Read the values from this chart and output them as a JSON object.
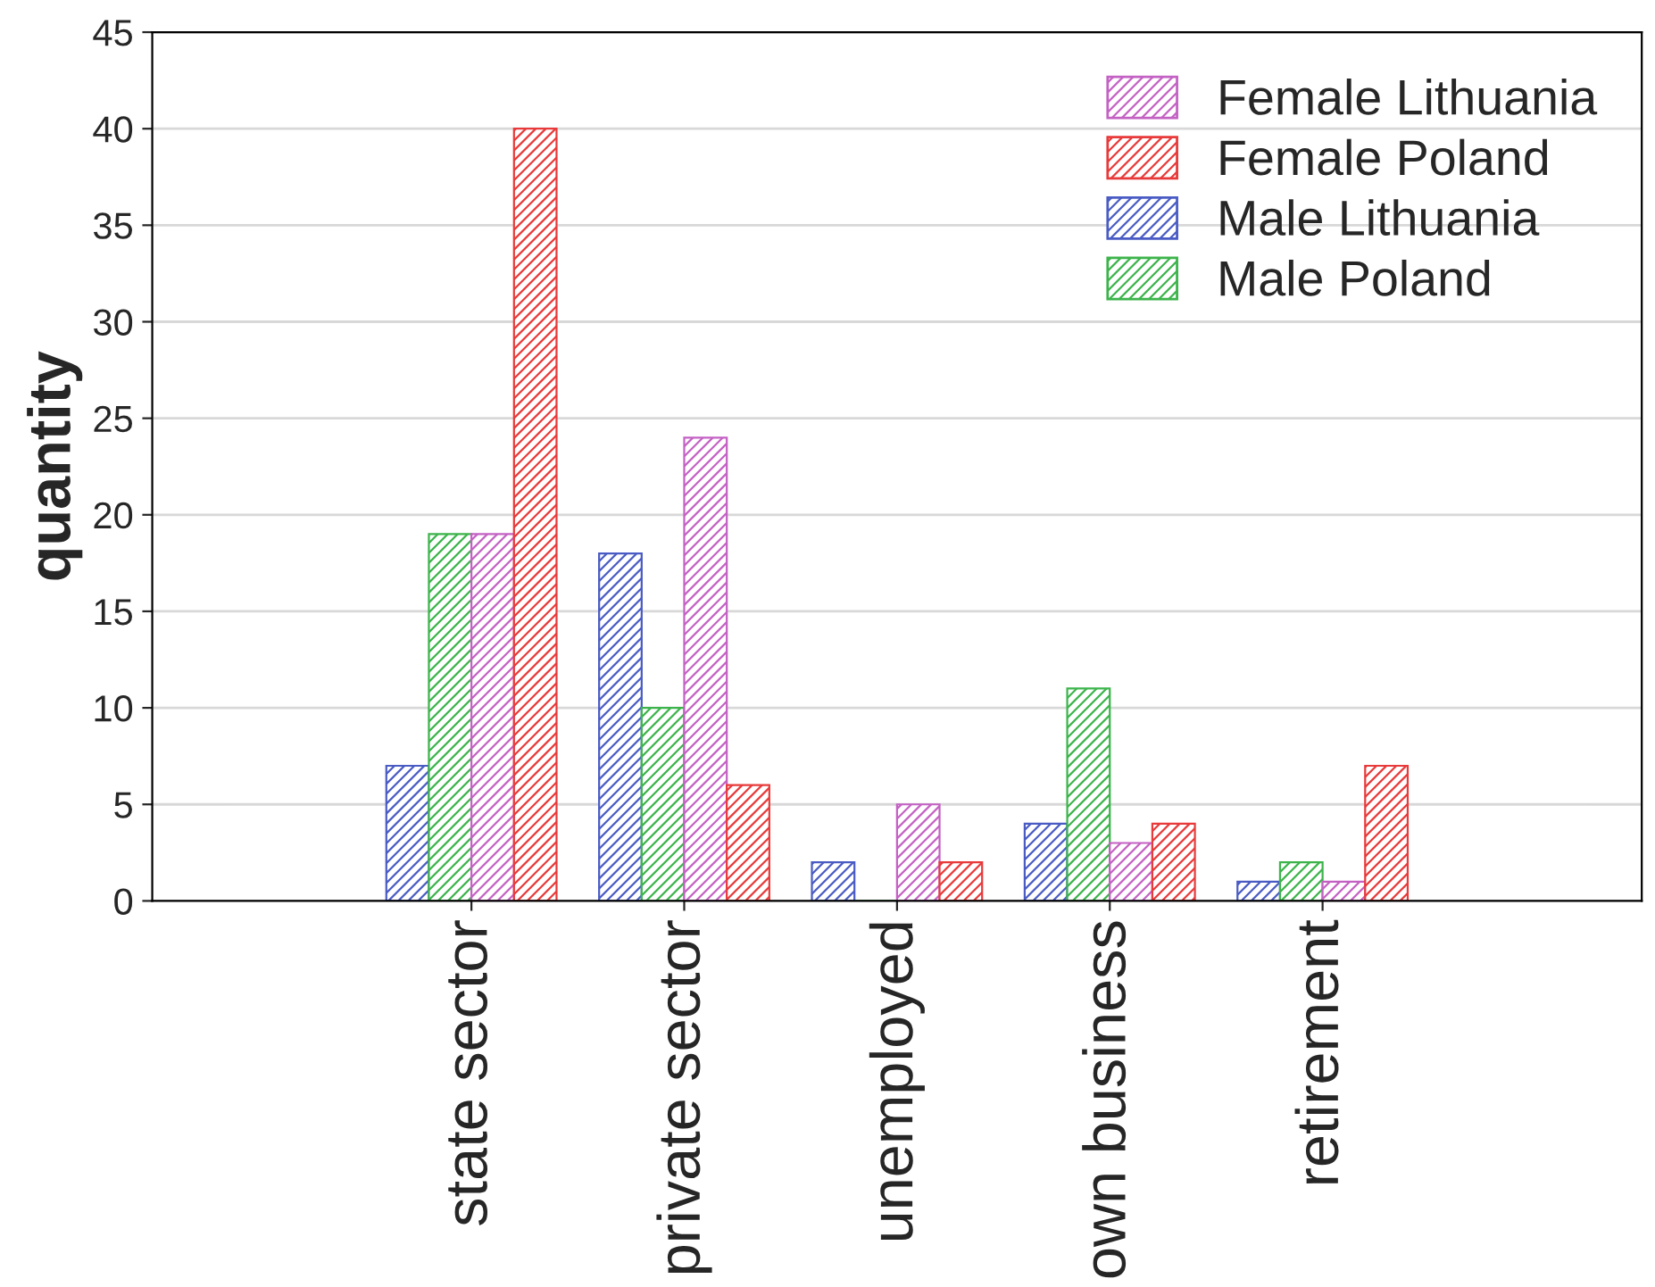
{
  "chart_data": {
    "type": "bar",
    "ylabel": "quantity",
    "categories": [
      "state sector",
      "private sector",
      "unemployed",
      "own business",
      "retirement"
    ],
    "series": [
      {
        "name": "Male Lithuania",
        "color": "#4a5cc4",
        "values": [
          7,
          18,
          2,
          4,
          1
        ]
      },
      {
        "name": "Male Poland",
        "color": "#3cb44b",
        "values": [
          19,
          10,
          0,
          11,
          2
        ]
      },
      {
        "name": "Female Lithuania",
        "color": "#c462c4",
        "values": [
          19,
          24,
          5,
          3,
          1
        ]
      },
      {
        "name": "Female Poland",
        "color": "#e83a3a",
        "values": [
          40,
          6,
          2,
          4,
          7
        ]
      }
    ],
    "ylim": [
      0,
      45
    ],
    "yticks": [
      0,
      5,
      10,
      15,
      20,
      25,
      30,
      35,
      40,
      45
    ],
    "grid": "y",
    "legend": "top right"
  }
}
